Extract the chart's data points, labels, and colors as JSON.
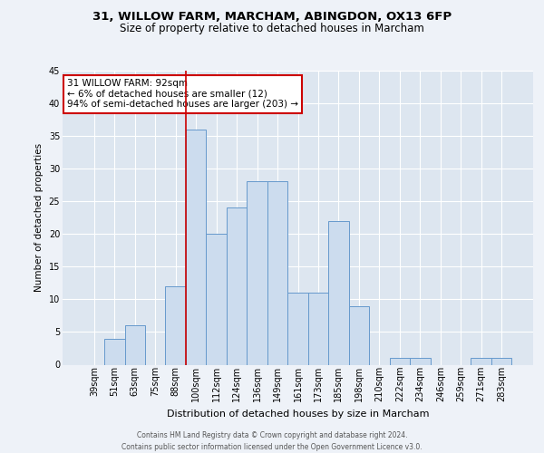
{
  "title_line1": "31, WILLOW FARM, MARCHAM, ABINGDON, OX13 6FP",
  "title_line2": "Size of property relative to detached houses in Marcham",
  "xlabel": "Distribution of detached houses by size in Marcham",
  "ylabel": "Number of detached properties",
  "categories": [
    "39sqm",
    "51sqm",
    "63sqm",
    "75sqm",
    "88sqm",
    "100sqm",
    "112sqm",
    "124sqm",
    "136sqm",
    "149sqm",
    "161sqm",
    "173sqm",
    "185sqm",
    "198sqm",
    "210sqm",
    "222sqm",
    "234sqm",
    "246sqm",
    "259sqm",
    "271sqm",
    "283sqm"
  ],
  "values": [
    0,
    4,
    6,
    0,
    12,
    36,
    20,
    24,
    28,
    28,
    11,
    11,
    22,
    9,
    0,
    1,
    1,
    0,
    0,
    1,
    1
  ],
  "bar_color": "#ccdcee",
  "bar_edge_color": "#6699cc",
  "ylim": [
    0,
    45
  ],
  "yticks": [
    0,
    5,
    10,
    15,
    20,
    25,
    30,
    35,
    40,
    45
  ],
  "annotation_line1": "31 WILLOW FARM: 92sqm",
  "annotation_line2": "← 6% of detached houses are smaller (12)",
  "annotation_line3": "94% of semi-detached houses are larger (203) →",
  "vline_x": 4.5,
  "footer_line1": "Contains HM Land Registry data © Crown copyright and database right 2024.",
  "footer_line2": "Contains public sector information licensed under the Open Government Licence v3.0.",
  "background_color": "#eef2f8",
  "plot_bg_color": "#dde6f0",
  "grid_color": "#ffffff",
  "annotation_box_color": "#ffffff",
  "annotation_border_color": "#cc0000",
  "vline_color": "#cc0000",
  "title1_fontsize": 9.5,
  "title2_fontsize": 8.5,
  "ylabel_fontsize": 7.5,
  "xlabel_fontsize": 8.0,
  "tick_fontsize": 7.0,
  "ann_fontsize": 7.5,
  "footer_fontsize": 5.5
}
